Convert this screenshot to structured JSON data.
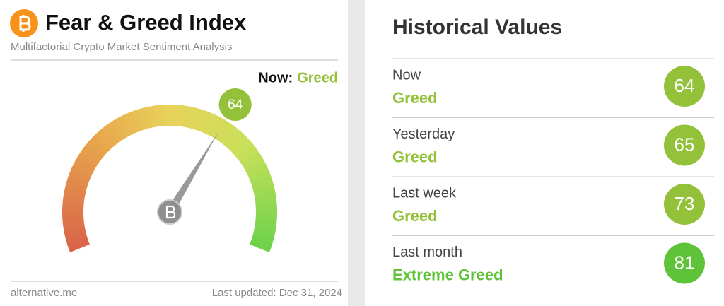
{
  "header": {
    "title": "Fear & Greed Index",
    "subtitle": "Multifactorial Crypto Market Sentiment Analysis"
  },
  "gauge": {
    "now_label": "Now:",
    "classification": "Greed",
    "value": 64,
    "range": [
      0,
      100
    ],
    "color": "#93c13a"
  },
  "footer": {
    "source": "alternative.me",
    "updated": "Last updated: Dec 31, 2024"
  },
  "historical": {
    "title": "Historical Values",
    "rows": [
      {
        "label": "Now",
        "classification": "Greed",
        "value": 64,
        "color": "#93c13a"
      },
      {
        "label": "Yesterday",
        "classification": "Greed",
        "value": 65,
        "color": "#93c13a"
      },
      {
        "label": "Last week",
        "classification": "Greed",
        "value": 73,
        "color": "#93c13a"
      },
      {
        "label": "Last month",
        "classification": "Extreme Greed",
        "value": 81,
        "color": "#5fc339"
      }
    ]
  }
}
